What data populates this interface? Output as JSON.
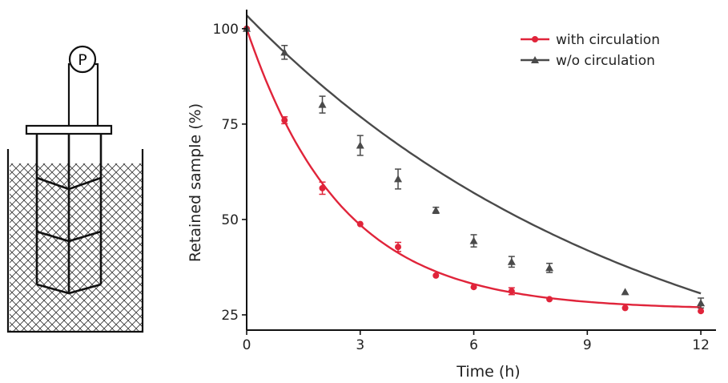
{
  "schematic": {
    "pump_label": "P"
  },
  "chart_data": {
    "type": "scatter",
    "xlabel": "Time (h)",
    "ylabel": "Retained sample (%)",
    "xlim": [
      0,
      12.4
    ],
    "ylim": [
      21,
      105
    ],
    "xticks": [
      0,
      3,
      6,
      9,
      12
    ],
    "xtick_labels": [
      "0",
      "3",
      "6",
      "9",
      "12"
    ],
    "yticks": [
      25,
      50,
      75,
      100
    ],
    "ytick_labels": [
      "25",
      "50",
      "75",
      "100"
    ],
    "grid": false,
    "legend_position": "top-right",
    "series": [
      {
        "name": "with circulation",
        "color": "#e0243a",
        "marker": "circle",
        "x": [
          0,
          1,
          2,
          3,
          4,
          5,
          6,
          7,
          8,
          10,
          12
        ],
        "y": [
          100,
          76,
          58.2,
          48.8,
          42.8,
          35.3,
          32.3,
          31.2,
          29.1,
          26.8,
          26.0
        ],
        "err": [
          0,
          0.9,
          1.6,
          0,
          1.2,
          0,
          0,
          0.9,
          0,
          0,
          0
        ],
        "fit": {
          "model": "exponential",
          "a": 73.6,
          "k": 0.4,
          "c": 26.4
        }
      },
      {
        "name": "w/o circulation",
        "color": "#4a4a4a",
        "marker": "triangle",
        "x": [
          0,
          1,
          2,
          3,
          4,
          5,
          6,
          7,
          8,
          10,
          12
        ],
        "y": [
          100,
          93.8,
          80.1,
          69.4,
          60.6,
          52.4,
          44.4,
          38.9,
          37.3,
          31.0,
          28.1
        ],
        "err": [
          0,
          1.8,
          2.2,
          2.6,
          2.6,
          0.8,
          1.6,
          1.4,
          1.2,
          0,
          1.3
        ],
        "fit": {
          "model": "exponential",
          "a": 107.4,
          "k": 0.0946,
          "c": -3.9
        }
      }
    ]
  }
}
